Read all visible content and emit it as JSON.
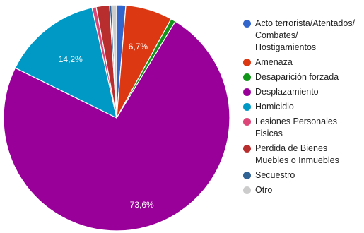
{
  "chart_data": {
    "type": "pie",
    "title": "",
    "series": [
      {
        "name": "Acto terrorista/Atentados/ Combates/ Hostigamientos",
        "legend_lines": [
          "Acto terrorista/Atentados/",
          "Combates/",
          "Hostigamientos"
        ],
        "value": 1.3,
        "color": "#3366cc"
      },
      {
        "name": "Amenaza",
        "legend_lines": [
          "Amenaza"
        ],
        "value": 6.7,
        "value_label": "6,7%",
        "color": "#dc3912"
      },
      {
        "name": "Desaparición forzada",
        "legend_lines": [
          "Desaparición forzada"
        ],
        "value": 0.7,
        "color": "#109618"
      },
      {
        "name": "Desplazamiento",
        "legend_lines": [
          "Desplazamiento"
        ],
        "value": 73.6,
        "value_label": "73,6%",
        "color": "#990099"
      },
      {
        "name": "Homicidio",
        "legend_lines": [
          "Homicidio"
        ],
        "value": 14.2,
        "value_label": "14,2%",
        "color": "#0099c6"
      },
      {
        "name": "Lesiones Personales Fisicas",
        "legend_lines": [
          "Lesiones Personales",
          "Fisicas"
        ],
        "value": 0.6,
        "color": "#dd4477"
      },
      {
        "name": "Perdida de Bienes Muebles o Inmuebles",
        "legend_lines": [
          "Perdida de Bienes",
          "Muebles o Inmuebles"
        ],
        "value": 1.9,
        "color": "#b82e2e"
      },
      {
        "name": "Secuestro",
        "legend_lines": [
          "Secuestro"
        ],
        "value": 0.3,
        "color": "#316395"
      },
      {
        "name": "Otro",
        "legend_lines": [
          "Otro"
        ],
        "value": 0.7,
        "color": "#cccccc"
      }
    ],
    "start_angle_deg": 0,
    "direction": "clockwise",
    "legend_position": "right"
  }
}
